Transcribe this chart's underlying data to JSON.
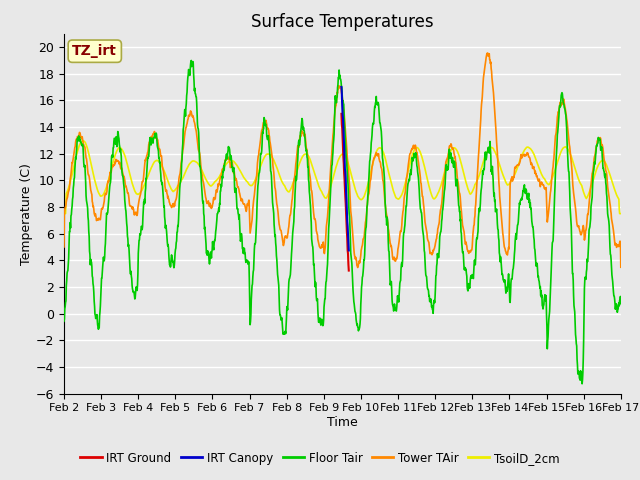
{
  "title": "Surface Temperatures",
  "xlabel": "Time",
  "ylabel": "Temperature (C)",
  "ylim": [
    -6,
    21
  ],
  "yticks": [
    -6,
    -4,
    -2,
    0,
    2,
    4,
    6,
    8,
    10,
    12,
    14,
    16,
    18,
    20
  ],
  "bg_color": "#e8e8e8",
  "grid_color": "#ffffff",
  "annotation_text": "TZ_irt",
  "annotation_fg": "#880000",
  "annotation_bg": "#ffffcc",
  "annotation_border": "#aaaa44",
  "colors": {
    "IRT Ground": "#dd0000",
    "IRT Canopy": "#0000cc",
    "Floor Tair": "#00cc00",
    "Tower TAir": "#ff8800",
    "TsoilD_2cm": "#eeee00"
  },
  "lw": 1.2,
  "xtick_labels": [
    "Feb 2",
    "Feb 3",
    "Feb 4",
    "Feb 5",
    "Feb 6",
    "Feb 7",
    "Feb 8",
    "Feb 9",
    "Feb 10",
    "Feb 11",
    "Feb 12",
    "Feb 13",
    "Feb 14",
    "Feb 15",
    "Feb 16",
    "Feb 17"
  ],
  "legend_labels": [
    "IRT Ground",
    "IRT Canopy",
    "Floor Tair",
    "Tower TAir",
    "TsoilD_2cm"
  ],
  "legend_colors": [
    "#dd0000",
    "#0000cc",
    "#00cc00",
    "#ff8800",
    "#eeee00"
  ]
}
